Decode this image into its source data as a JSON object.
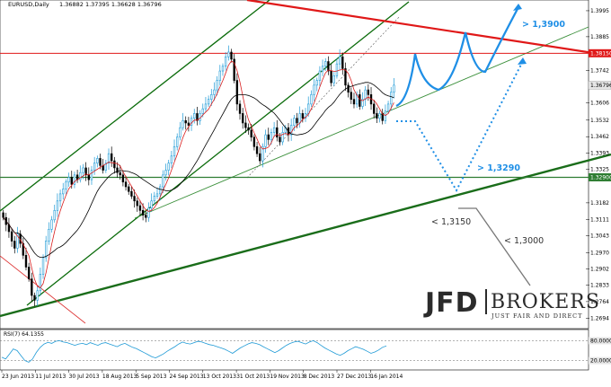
{
  "header": {
    "symbol": "EURUSD,Daily",
    "ohlc": "1.36882 1.37395 1.36628 1.36796"
  },
  "chart_data": [
    {
      "type": "candlestick",
      "price_axis_ticks": [
        1.3995,
        1.3885,
        1.3742,
        1.3606,
        1.3532,
        1.3462,
        1.3393,
        1.3325,
        1.3182,
        1.3111,
        1.3043,
        1.297,
        1.2902,
        1.2833,
        1.2764,
        1.2694
      ],
      "ylim": [
        1.268,
        1.401
      ],
      "date_axis_labels": [
        "23 Jun 2013",
        "11 Jul 2013",
        "30 Jul 2013",
        "18 Aug 2013",
        "5 Sep 2013",
        "24 Sep 2013",
        "13 Oct 2013",
        "31 Oct 2013",
        "19 Nov 2013",
        "8 Dec 2013",
        "27 Dec 2013",
        "16 Jan 2014"
      ],
      "closes": [
        1.312,
        1.309,
        1.306,
        1.302,
        1.299,
        1.305,
        1.301,
        1.296,
        1.291,
        1.286,
        1.279,
        1.277,
        1.281,
        1.288,
        1.295,
        1.302,
        1.307,
        1.311,
        1.315,
        1.319,
        1.322,
        1.324,
        1.327,
        1.329,
        1.326,
        1.33,
        1.328,
        1.331,
        1.333,
        1.33,
        1.328,
        1.332,
        1.335,
        1.337,
        1.334,
        1.332,
        1.335,
        1.339,
        1.336,
        1.333,
        1.331,
        1.33,
        1.327,
        1.325,
        1.323,
        1.321,
        1.319,
        1.317,
        1.315,
        1.313,
        1.312,
        1.316,
        1.319,
        1.321,
        1.322,
        1.325,
        1.33,
        1.332,
        1.335,
        1.338,
        1.342,
        1.346,
        1.35,
        1.353,
        1.352,
        1.351,
        1.354,
        1.356,
        1.353,
        1.356,
        1.358,
        1.36,
        1.362,
        1.364,
        1.366,
        1.37,
        1.374,
        1.376,
        1.38,
        1.382,
        1.379,
        1.37,
        1.36,
        1.356,
        1.352,
        1.35,
        1.349,
        1.346,
        1.342,
        1.339,
        1.336,
        1.342,
        1.347,
        1.345,
        1.348,
        1.35,
        1.346,
        1.344,
        1.348,
        1.35,
        1.347,
        1.351,
        1.354,
        1.352,
        1.356,
        1.354,
        1.356,
        1.36,
        1.364,
        1.368,
        1.37,
        1.374,
        1.376,
        1.378,
        1.374,
        1.369,
        1.372,
        1.377,
        1.38,
        1.375,
        1.368,
        1.365,
        1.362,
        1.36,
        1.364,
        1.359,
        1.362,
        1.366,
        1.364,
        1.36,
        1.356,
        1.354,
        1.356,
        1.353,
        1.357,
        1.36,
        1.365,
        1.368
      ],
      "horizontal_levels": [
        {
          "value": 1.3815,
          "label": "1.38150"
        },
        {
          "value": 1.329,
          "label": "1.32900"
        }
      ],
      "current_price_label": "1.36796",
      "scenario_labels": [
        {
          "text": "> 1,3900",
          "color": "#1f8fe6"
        },
        {
          "text": "> 1,3290",
          "color": "#1f8fe6"
        },
        {
          "text": "< 1,3150",
          "color": "#333333"
        },
        {
          "text": "< 1,3000",
          "color": "#333333"
        }
      ]
    },
    {
      "type": "line",
      "title": "RSI(7) 64.1355",
      "levels": [
        {
          "value": 80,
          "label": "80.0000"
        },
        {
          "value": 20,
          "label": "20.0000"
        }
      ],
      "ylim": [
        0,
        100
      ],
      "values": [
        30,
        25,
        40,
        55,
        50,
        35,
        20,
        15,
        25,
        45,
        60,
        70,
        75,
        72,
        78,
        80,
        76,
        74,
        70,
        66,
        70,
        72,
        68,
        74,
        70,
        66,
        72,
        74,
        70,
        66,
        62,
        68,
        72,
        66,
        60,
        56,
        50,
        44,
        38,
        32,
        28,
        34,
        40,
        48,
        55,
        62,
        70,
        76,
        72,
        70,
        74,
        78,
        76,
        72,
        68,
        66,
        62,
        58,
        54,
        48,
        42,
        50,
        58,
        64,
        70,
        74,
        72,
        68,
        62,
        56,
        50,
        44,
        50,
        58,
        66,
        72,
        76,
        78,
        74,
        70,
        76,
        80,
        74,
        66,
        58,
        52,
        46,
        40,
        36,
        42,
        50,
        56,
        62,
        58,
        54,
        48,
        42,
        46,
        52,
        60,
        64
      ]
    }
  ],
  "logo": {
    "left": "JFD",
    "right": "BROKERS",
    "tagline": "JUST FAIR AND DIRECT"
  },
  "colors": {
    "bull": "#1e9ad6",
    "bear": "#000000",
    "channel": "#0a6b0a",
    "trendline": "#e01818",
    "ma_red": "#d81e1e",
    "ma_black": "#000000",
    "scenario_blue": "#1f8fe6",
    "support": "#2e7d32"
  }
}
